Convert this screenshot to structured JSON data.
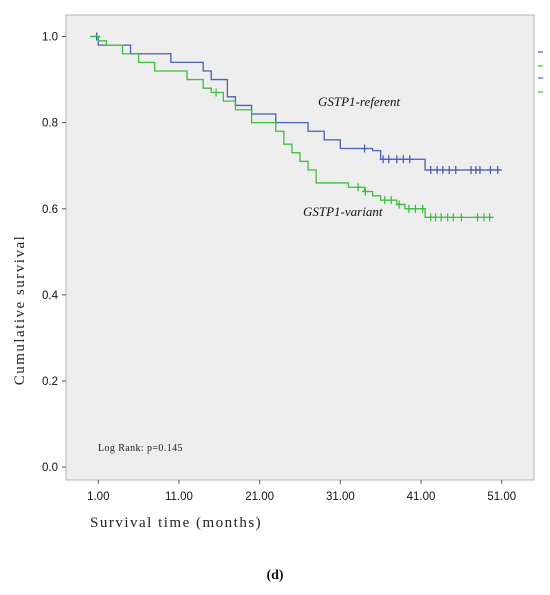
{
  "chart_data": {
    "type": "line",
    "title": "",
    "xlabel": "Survival time (months)",
    "ylabel": "Cumulative survival",
    "xlim": [
      -3,
      55
    ],
    "ylim": [
      -0.03,
      1.05
    ],
    "x_ticks": [
      1,
      11,
      21,
      31,
      41,
      51
    ],
    "x_tick_labels": [
      "1.00",
      "11.00",
      "21.00",
      "31.00",
      "41.00",
      "51.00"
    ],
    "y_ticks": [
      0,
      0.2,
      0.4,
      0.6,
      0.8,
      1.0
    ],
    "y_tick_labels": [
      "0.0",
      "0.2",
      "0.4",
      "0.6",
      "0.8",
      "1.0"
    ],
    "grid": false,
    "annotation": "Log Rank: p=0.145",
    "series": [
      {
        "name": "GSTP1-referent",
        "color": "#4a5fb5",
        "steps": [
          [
            0,
            1.0
          ],
          [
            1,
            0.98
          ],
          [
            5,
            0.96
          ],
          [
            10,
            0.94
          ],
          [
            14,
            0.92
          ],
          [
            15,
            0.9
          ],
          [
            17,
            0.86
          ],
          [
            18,
            0.84
          ],
          [
            20,
            0.82
          ],
          [
            23,
            0.8
          ],
          [
            27,
            0.78
          ],
          [
            29,
            0.76
          ],
          [
            31,
            0.74
          ],
          [
            35,
            0.735
          ],
          [
            36,
            0.715
          ],
          [
            41.5,
            0.69
          ],
          [
            51,
            0.69
          ]
        ],
        "censored": [
          0.8,
          34,
          36.3,
          37,
          38,
          38.8,
          39.6,
          42.2,
          43,
          43.7,
          44.5,
          45.3,
          47.2,
          47.8,
          48.3,
          49.6,
          50.5
        ]
      },
      {
        "name": "GSTP1-variant",
        "color": "#3fbf3f",
        "steps": [
          [
            0,
            1.0
          ],
          [
            1,
            0.99
          ],
          [
            2,
            0.98
          ],
          [
            4,
            0.96
          ],
          [
            6,
            0.94
          ],
          [
            8,
            0.92
          ],
          [
            12,
            0.9
          ],
          [
            14,
            0.88
          ],
          [
            15,
            0.87
          ],
          [
            16.5,
            0.85
          ],
          [
            18,
            0.83
          ],
          [
            20,
            0.8
          ],
          [
            23,
            0.78
          ],
          [
            24,
            0.75
          ],
          [
            25,
            0.73
          ],
          [
            26,
            0.71
          ],
          [
            27,
            0.69
          ],
          [
            28,
            0.66
          ],
          [
            32,
            0.65
          ],
          [
            34,
            0.64
          ],
          [
            35,
            0.63
          ],
          [
            36,
            0.62
          ],
          [
            38,
            0.61
          ],
          [
            39,
            0.6
          ],
          [
            41.5,
            0.58
          ],
          [
            50,
            0.58
          ]
        ],
        "censored": [
          15.6,
          33.2,
          34.1,
          36.5,
          37.3,
          38.3,
          39.5,
          40.3,
          41.2,
          42.2,
          42.8,
          43.5,
          44.3,
          45,
          46,
          48,
          48.8,
          49.5
        ]
      }
    ]
  }
}
